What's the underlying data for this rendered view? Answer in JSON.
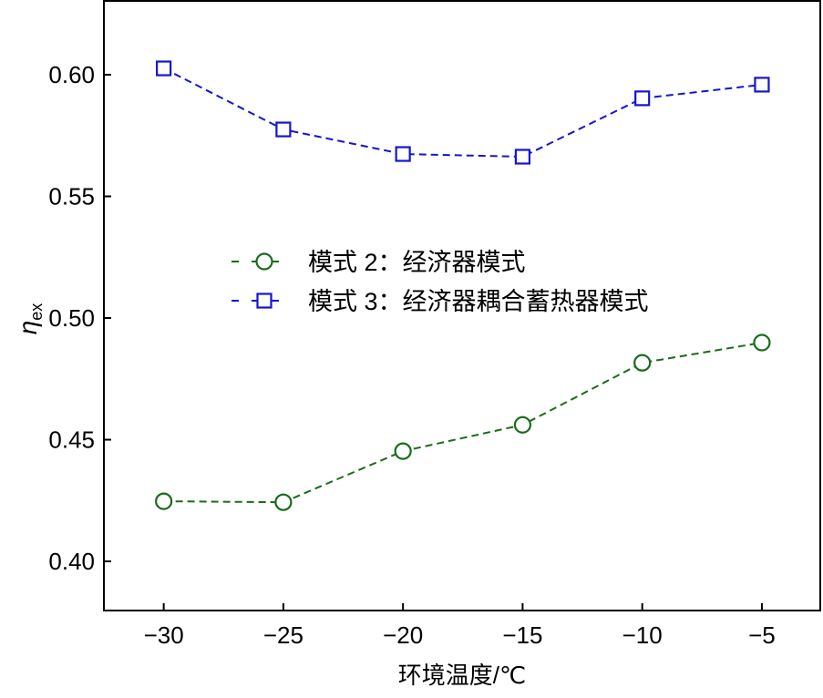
{
  "chart_data": {
    "type": "line",
    "xlabel": "环境温度/℃",
    "ylabel": "η",
    "ylabel_sub": "ex",
    "xlim": [
      -32.5,
      -2.56
    ],
    "ylim": [
      0.3798,
      0.6307
    ],
    "xticks": [
      -30,
      -25,
      -20,
      -15,
      -10,
      -5
    ],
    "xtick_labels": [
      "−30",
      "−25",
      "−20",
      "−15",
      "−10",
      "−5"
    ],
    "yticks": [
      0.4,
      0.45,
      0.5,
      0.55,
      0.6
    ],
    "ytick_labels": [
      "0.40",
      "0.45",
      "0.50",
      "0.55",
      "0.60"
    ],
    "grid": false,
    "legend_placement": "center",
    "x": [
      -30,
      -25,
      -20,
      -15,
      -10,
      -5
    ],
    "series": [
      {
        "name": "模式 2：经济器模式",
        "marker": "circle",
        "color": "#1a6b1a",
        "values": [
          0.4247,
          0.4243,
          0.4453,
          0.4561,
          0.4816,
          0.4899
        ]
      },
      {
        "name": "模式 3：经济器耦合蓄热器模式",
        "marker": "square",
        "color": "#1515d0",
        "values": [
          0.6026,
          0.5775,
          0.5674,
          0.5663,
          0.5903,
          0.5959
        ]
      }
    ]
  }
}
